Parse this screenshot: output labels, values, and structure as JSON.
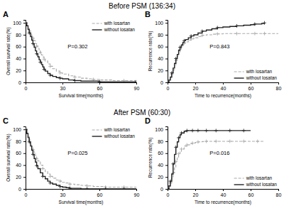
{
  "chart_data": [
    {
      "type": "line",
      "title": "Before PSM (136:34)",
      "panel_label": "A",
      "annotation": "P=0.302",
      "xlabel": "Survival time(months)",
      "ylabel": "Overall survival rate(%)",
      "xlim": [
        0,
        90
      ],
      "ylim": [
        0,
        105
      ],
      "xticks": [
        0,
        30,
        60,
        90
      ],
      "yticks": [
        0,
        20,
        40,
        60,
        80,
        100
      ],
      "legend": "upper right",
      "series": [
        {
          "name": "with losartan",
          "color": "#aaaaaa",
          "line_style": "dashed",
          "marker": "plus",
          "x": [
            0,
            1,
            2,
            3,
            4,
            5,
            6,
            7,
            8,
            9,
            10,
            11,
            12,
            13,
            14,
            15,
            16,
            18,
            20,
            22,
            25,
            28,
            30,
            35,
            40,
            45,
            50,
            55,
            60,
            70,
            80,
            90
          ],
          "values": [
            100,
            96,
            91,
            87,
            83,
            78,
            74,
            70,
            65,
            61,
            57,
            53,
            50,
            46,
            43,
            39,
            36,
            31,
            27,
            23,
            19,
            16,
            14,
            11,
            9,
            7,
            6,
            5,
            4,
            3,
            3,
            3
          ]
        },
        {
          "name": "without losatan",
          "color": "#222222",
          "line_style": "solid",
          "marker": "plus",
          "x": [
            0,
            1,
            2,
            3,
            4,
            5,
            6,
            7,
            8,
            9,
            10,
            11,
            12,
            13,
            14,
            15,
            16,
            18,
            20,
            22,
            25,
            28,
            30,
            35,
            40,
            45,
            50,
            60,
            70,
            80,
            90
          ],
          "values": [
            100,
            95,
            89,
            83,
            77,
            71,
            65,
            59,
            53,
            48,
            43,
            38,
            34,
            30,
            26,
            22,
            19,
            15,
            12,
            10,
            8,
            7,
            6,
            4,
            3,
            2,
            2,
            1,
            1,
            1,
            1
          ]
        }
      ]
    },
    {
      "type": "line",
      "panel_label": "B",
      "annotation": "P=0.843",
      "xlabel": "Time to recurrence(months)",
      "ylabel": "Recurrence rate(%)",
      "xlim": [
        0,
        80
      ],
      "ylim": [
        0,
        105
      ],
      "xticks": [
        0,
        20,
        40,
        60,
        80
      ],
      "yticks": [
        0,
        20,
        40,
        60,
        80,
        100
      ],
      "legend": "lower right",
      "series": [
        {
          "name": "with losartan",
          "color": "#aaaaaa",
          "line_style": "dashed",
          "marker": "plus",
          "x": [
            0,
            1,
            2,
            3,
            4,
            5,
            6,
            7,
            8,
            9,
            10,
            11,
            12,
            13,
            15,
            17,
            19,
            22,
            25,
            28,
            32,
            36,
            40,
            45,
            50,
            55,
            60,
            63,
            65,
            68,
            70,
            75,
            80
          ],
          "values": [
            0,
            3,
            8,
            14,
            21,
            29,
            37,
            44,
            51,
            56,
            60,
            63,
            66,
            68,
            71,
            73,
            75,
            77,
            79,
            80,
            81,
            81.5,
            82,
            82,
            82,
            82,
            82,
            82,
            82,
            82,
            82,
            82,
            82
          ]
        },
        {
          "name": "without losatan",
          "color": "#222222",
          "line_style": "solid",
          "marker": "plus",
          "x": [
            0,
            1,
            2,
            3,
            4,
            5,
            6,
            7,
            8,
            9,
            10,
            11,
            12,
            13,
            15,
            17,
            19,
            22,
            25,
            28,
            32,
            36,
            40,
            45,
            50,
            55,
            60,
            63,
            65,
            68,
            70
          ],
          "values": [
            0,
            4,
            9,
            16,
            24,
            32,
            40,
            47,
            54,
            59,
            63,
            67,
            70,
            72,
            75,
            78,
            80,
            83,
            86,
            88,
            90,
            92,
            93,
            94,
            95,
            96,
            97,
            98,
            98,
            99,
            100
          ]
        }
      ]
    },
    {
      "type": "line",
      "title": "After PSM (60:30)",
      "panel_label": "C",
      "annotation": "P=0.025",
      "xlabel": "Survival time(months)",
      "ylabel": "Overall survival rate(%)",
      "xlim": [
        0,
        90
      ],
      "ylim": [
        0,
        105
      ],
      "xticks": [
        0,
        30,
        60,
        90
      ],
      "yticks": [
        0,
        20,
        40,
        60,
        80,
        100
      ],
      "legend": "upper right",
      "series": [
        {
          "name": "with losartan",
          "color": "#aaaaaa",
          "line_style": "dashed",
          "marker": "plus",
          "x": [
            0,
            1,
            2,
            3,
            4,
            5,
            6,
            7,
            8,
            9,
            10,
            12,
            14,
            16,
            18,
            20,
            22,
            25,
            28,
            30,
            33,
            36,
            40,
            45,
            50,
            55,
            60,
            65,
            70,
            75,
            80,
            90
          ],
          "values": [
            100,
            94,
            88,
            82,
            76,
            71,
            66,
            61,
            56,
            51,
            47,
            40,
            34,
            29,
            25,
            21,
            18,
            15,
            13,
            11,
            10,
            8,
            7,
            6,
            5,
            4,
            4,
            3,
            3,
            3,
            3,
            3
          ]
        },
        {
          "name": "without losatan",
          "color": "#222222",
          "line_style": "solid",
          "marker": "plus",
          "x": [
            0,
            1,
            2,
            3,
            4,
            5,
            6,
            7,
            8,
            9,
            10,
            12,
            14,
            16,
            18,
            20,
            22,
            25,
            28,
            30,
            33,
            36,
            40,
            45,
            50,
            55,
            60,
            65,
            70,
            75,
            80,
            90
          ],
          "values": [
            100,
            93,
            86,
            79,
            72,
            65,
            58,
            51,
            45,
            39,
            34,
            27,
            21,
            17,
            13,
            10,
            8,
            6,
            4,
            3,
            2,
            1,
            1,
            0,
            0,
            0,
            0,
            0,
            0,
            0,
            0,
            0
          ]
        }
      ]
    },
    {
      "type": "line",
      "panel_label": "D",
      "annotation": "P=0.016",
      "xlabel": "Time to recurrence(months)",
      "ylabel": "Recurrence rate(%)",
      "xlim": [
        0,
        80
      ],
      "ylim": [
        0,
        105
      ],
      "xticks": [
        0,
        20,
        40,
        60,
        80
      ],
      "yticks": [
        0,
        20,
        40,
        60,
        80,
        100
      ],
      "legend": "lower right",
      "series": [
        {
          "name": "with losartan",
          "color": "#aaaaaa",
          "line_style": "dashed",
          "marker": "plus",
          "x": [
            0,
            1,
            2,
            3,
            4,
            5,
            6,
            7,
            8,
            9,
            10,
            12,
            14,
            16,
            18,
            20,
            22,
            25,
            28,
            30,
            35,
            40,
            45,
            50,
            55,
            60,
            65,
            70
          ],
          "values": [
            0,
            4,
            10,
            18,
            27,
            37,
            46,
            53,
            59,
            63,
            67,
            72,
            74,
            76,
            77,
            78,
            79,
            79.5,
            80,
            80,
            80,
            80,
            80,
            80,
            80,
            80,
            80,
            80
          ]
        },
        {
          "name": "without losatan",
          "color": "#222222",
          "line_style": "solid",
          "marker": "plus",
          "x": [
            0,
            1,
            2,
            3,
            4,
            5,
            6,
            7,
            8,
            9,
            10,
            12,
            14,
            16,
            18,
            20,
            22,
            25,
            28,
            30,
            35,
            40,
            45,
            50,
            55,
            60
          ],
          "values": [
            0,
            5,
            13,
            25,
            42,
            58,
            70,
            79,
            86,
            91,
            94,
            97,
            98,
            98,
            98,
            98,
            98,
            98,
            98,
            98,
            98,
            98,
            98,
            98,
            98,
            98
          ]
        }
      ]
    }
  ]
}
